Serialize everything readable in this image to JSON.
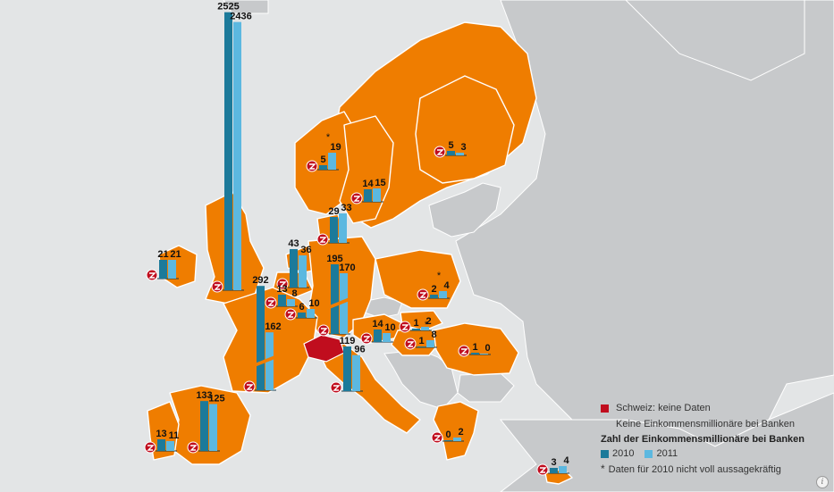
{
  "legend": {
    "no_data_label": "Schweiz: keine Daten",
    "no_millionaires_label": "Keine Einkommensmillionäre bei Banken",
    "title": "Zahl der Einkommensmillionäre bei Banken",
    "year_2010": "2010",
    "year_2011": "2011",
    "footnote_marker": "*",
    "footnote": "Daten für 2010 nicht voll aussagekräftig"
  },
  "colors": {
    "sea": "#e3e5e6",
    "other_land": "#c7c9cb",
    "eu_country": "#ef7d00",
    "switzerland": "#c00d1e",
    "no_millionaires": "#c7c9cb",
    "bar_2010": "#1c7a9a",
    "bar_2011": "#5cb8e0"
  },
  "info_button": "i",
  "chart_data": {
    "type": "bar",
    "title": "Zahl der Einkommensmillionäre bei Banken",
    "series": [
      {
        "name": "2010"
      },
      {
        "name": "2011"
      }
    ],
    "countries": [
      {
        "id": "uk",
        "v2010": 2525,
        "v2011": 2436,
        "label2010": "2525",
        "label2011": "2436"
      },
      {
        "id": "ireland",
        "v2010": 21,
        "v2011": 21,
        "label2010": "21",
        "label2011": "21"
      },
      {
        "id": "norway",
        "v2010": 5,
        "v2011": 19,
        "label2010": "5",
        "label2011": "19",
        "footnote": true
      },
      {
        "id": "sweden",
        "v2010": 14,
        "v2011": 15,
        "label2010": "14",
        "label2011": "15"
      },
      {
        "id": "finland",
        "v2010": 5,
        "v2011": 3,
        "label2010": "5",
        "label2011": "3"
      },
      {
        "id": "denmark",
        "v2010": 29,
        "v2011": 33,
        "label2010": "29",
        "label2011": "33"
      },
      {
        "id": "netherlands",
        "v2010": 43,
        "v2011": 36,
        "label2010": "43",
        "label2011": "36"
      },
      {
        "id": "belgium",
        "v2010": 13,
        "v2011": 8,
        "label2010": "13",
        "label2011": "8"
      },
      {
        "id": "luxembourg",
        "v2010": 6,
        "v2011": 10,
        "label2010": "6",
        "label2011": "10"
      },
      {
        "id": "germany",
        "v2010": 195,
        "v2011": 170,
        "label2010": "195",
        "label2011": "170"
      },
      {
        "id": "france",
        "v2010": 292,
        "v2011": 162,
        "label2010": "292",
        "label2011": "162"
      },
      {
        "id": "poland",
        "v2010": 2,
        "v2011": 4,
        "label2010": "2",
        "label2011": "4",
        "footnote": true
      },
      {
        "id": "austria",
        "v2010": 14,
        "v2011": 10,
        "label2010": "14",
        "label2011": "10"
      },
      {
        "id": "slovakia",
        "v2010": 1,
        "v2011": 2,
        "label2010": "1",
        "label2011": "2"
      },
      {
        "id": "hungary",
        "v2010": 1,
        "v2011": 8,
        "label2010": "1",
        "label2011": "8",
        "footnote": true
      },
      {
        "id": "romania",
        "v2010": 1,
        "v2011": 0,
        "label2010": "1",
        "label2011": "0"
      },
      {
        "id": "italy",
        "v2010": 119,
        "v2011": 96,
        "label2010": "119",
        "label2011": "96"
      },
      {
        "id": "spain",
        "v2010": 133,
        "v2011": 125,
        "label2010": "133",
        "label2011": "125"
      },
      {
        "id": "portugal",
        "v2010": 13,
        "v2011": 11,
        "label2010": "13",
        "label2011": "11"
      },
      {
        "id": "greece",
        "v2010": 0,
        "v2011": 2,
        "label2010": "0",
        "label2011": "2"
      },
      {
        "id": "cyprus",
        "v2010": 3,
        "v2011": 4,
        "label2010": "3",
        "label2011": "4"
      }
    ]
  }
}
